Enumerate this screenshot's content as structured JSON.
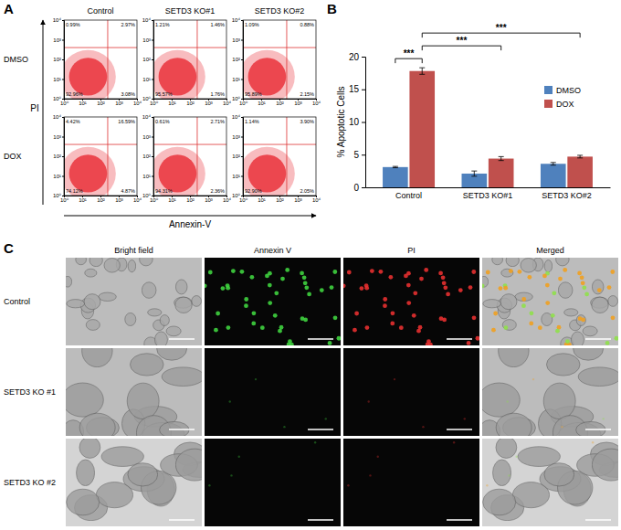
{
  "chart_data": [
    {
      "type": "quadrant_scatter",
      "title": "A",
      "columns": [
        "Control",
        "SETD3 KO#1",
        "SETD3 KO#2"
      ],
      "rows": [
        "DMSO",
        "DOX"
      ],
      "x_label": "Annexin-V",
      "y_label": "PI",
      "log": true,
      "xlim": [
        1,
        10000
      ],
      "ylim": [
        1,
        10000
      ],
      "xticks": [
        {
          "value": 1,
          "label": "10⁰"
        },
        {
          "value": 10,
          "label": "10¹"
        },
        {
          "value": 100,
          "label": "10²"
        },
        {
          "value": 1000,
          "label": "10³"
        },
        {
          "value": 10000,
          "label": "10⁴"
        }
      ],
      "yticks": [
        {
          "value": 1,
          "label": "10⁰"
        },
        {
          "value": 10,
          "label": "10¹"
        },
        {
          "value": 100,
          "label": "10²"
        },
        {
          "value": 1000,
          "label": "10³"
        },
        {
          "value": 10000,
          "label": "10⁴"
        }
      ],
      "gates": {
        "x": 250,
        "y": 400
      },
      "panels": [
        {
          "quadrants": [
            0.99,
            2.97,
            92.96,
            3.08
          ],
          "value_labels": [
            "0.99%",
            "2.97%",
            "92.96%",
            "3.08%"
          ]
        },
        {
          "quadrants": [
            1.21,
            1.46,
            95.57,
            1.76
          ],
          "value_labels": [
            "1.21%",
            "1.46%",
            "95.57%",
            "1.76%"
          ]
        },
        {
          "quadrants": [
            1.09,
            0.88,
            95.89,
            2.15
          ],
          "value_labels": [
            "1.09%",
            "0.88%",
            "95.89%",
            "2.15%"
          ]
        },
        {
          "quadrants": [
            4.42,
            16.59,
            74.12,
            4.87
          ],
          "value_labels": [
            "4.42%",
            "16.59%",
            "74.12%",
            "4.87%"
          ]
        },
        {
          "quadrants": [
            0.61,
            2.71,
            94.31,
            2.36
          ],
          "value_labels": [
            "0.61%",
            "2.71%",
            "94.31%",
            "2.36%"
          ]
        },
        {
          "quadrants": [
            1.14,
            3.9,
            92.9,
            2.05
          ],
          "value_labels": [
            "1.14%",
            "3.90%",
            "92.90%",
            "2.05%"
          ]
        }
      ]
    },
    {
      "type": "bar",
      "title": "B",
      "categories": [
        "Control",
        "SETD3 KO#1",
        "SETD3 KO#2"
      ],
      "y_label": "% Apoptotic Cells",
      "ylim": [
        0,
        20
      ],
      "yticks": [
        0,
        5,
        10,
        15,
        20
      ],
      "legend": "upper right",
      "series": [
        {
          "name": "DMSO",
          "color": "#4f81bd",
          "values": [
            3.1,
            2.1,
            3.6
          ],
          "errors": [
            0.1,
            0.4,
            0.2
          ]
        },
        {
          "name": "DOX",
          "color": "#c0504d",
          "values": [
            17.8,
            4.4,
            4.7
          ],
          "errors": [
            0.5,
            0.3,
            0.2
          ]
        }
      ],
      "annotations": [
        "***",
        "***",
        "***"
      ]
    }
  ],
  "image_panel": {
    "title": "C",
    "columns": [
      "Bright field",
      "Annexin V",
      "PI",
      "Merged"
    ],
    "rows": [
      "Control",
      "SETD3 KO #1",
      "SETD3 KO #2"
    ]
  }
}
